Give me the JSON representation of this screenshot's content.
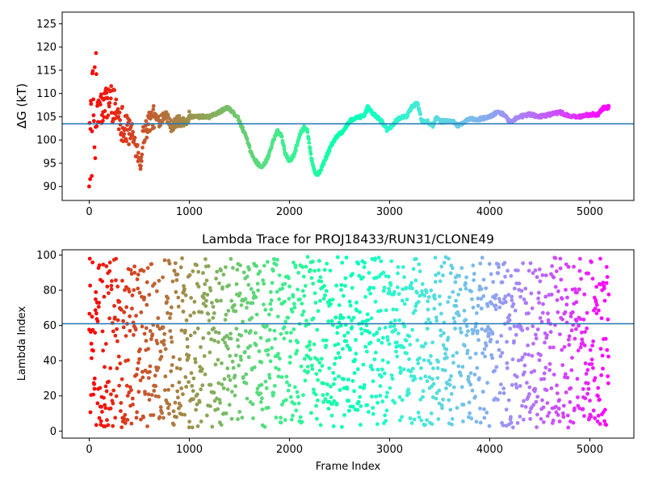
{
  "chart_data": [
    {
      "type": "scatter",
      "title": "",
      "xlabel": "",
      "ylabel": "ΔG (kT)",
      "xlim": [
        -270,
        5440
      ],
      "ylim": [
        87,
        127.5
      ],
      "xticks": [
        0,
        1000,
        2000,
        3000,
        4000,
        5000
      ],
      "yticks": [
        90,
        95,
        100,
        105,
        110,
        115,
        120,
        125
      ],
      "hline": 103.5,
      "colormap": "rainbow",
      "grid": false,
      "x_range": [
        0,
        5190
      ],
      "trend": [
        [
          0,
          100
        ],
        [
          30,
          103
        ],
        [
          60,
          108
        ],
        [
          100,
          106
        ],
        [
          150,
          107
        ],
        [
          200,
          109
        ],
        [
          260,
          107
        ],
        [
          320,
          104
        ],
        [
          380,
          103
        ],
        [
          430,
          101
        ],
        [
          480,
          98
        ],
        [
          510,
          95
        ],
        [
          540,
          101
        ],
        [
          600,
          104
        ],
        [
          650,
          105
        ],
        [
          700,
          104
        ],
        [
          760,
          106
        ],
        [
          820,
          103
        ],
        [
          880,
          104
        ],
        [
          950,
          104
        ],
        [
          1000,
          105
        ],
        [
          1100,
          105
        ],
        [
          1200,
          105
        ],
        [
          1300,
          106
        ],
        [
          1380,
          107
        ],
        [
          1430,
          106
        ],
        [
          1480,
          105
        ],
        [
          1560,
          101
        ],
        [
          1620,
          97
        ],
        [
          1680,
          95
        ],
        [
          1730,
          94
        ],
        [
          1780,
          96
        ],
        [
          1840,
          100
        ],
        [
          1880,
          102
        ],
        [
          1920,
          101
        ],
        [
          1960,
          97
        ],
        [
          2000,
          95.5
        ],
        [
          2050,
          97
        ],
        [
          2100,
          101
        ],
        [
          2150,
          103
        ],
        [
          2180,
          102
        ],
        [
          2220,
          96
        ],
        [
          2260,
          92.5
        ],
        [
          2300,
          93
        ],
        [
          2360,
          96
        ],
        [
          2420,
          99
        ],
        [
          2480,
          101
        ],
        [
          2540,
          102
        ],
        [
          2600,
          104
        ],
        [
          2680,
          105
        ],
        [
          2740,
          105
        ],
        [
          2780,
          107
        ],
        [
          2820,
          106
        ],
        [
          2870,
          105
        ],
        [
          2920,
          104
        ],
        [
          2980,
          102
        ],
        [
          3060,
          104
        ],
        [
          3120,
          105
        ],
        [
          3170,
          105
        ],
        [
          3220,
          107
        ],
        [
          3280,
          108
        ],
        [
          3320,
          104
        ],
        [
          3380,
          104
        ],
        [
          3430,
          103
        ],
        [
          3470,
          105
        ],
        [
          3510,
          104
        ],
        [
          3560,
          104
        ],
        [
          3600,
          104
        ],
        [
          3640,
          104
        ],
        [
          3680,
          103
        ],
        [
          3720,
          103.5
        ],
        [
          3800,
          104.5
        ],
        [
          3900,
          104.5
        ],
        [
          4000,
          105
        ],
        [
          4080,
          106
        ],
        [
          4140,
          105.5
        ],
        [
          4200,
          104
        ],
        [
          4300,
          105
        ],
        [
          4400,
          105.5
        ],
        [
          4500,
          105
        ],
        [
          4600,
          105.5
        ],
        [
          4700,
          106
        ],
        [
          4800,
          105
        ],
        [
          4900,
          105
        ],
        [
          5000,
          105.5
        ],
        [
          5080,
          105.5
        ],
        [
          5140,
          107
        ],
        [
          5190,
          107
        ]
      ]
    },
    {
      "type": "scatter",
      "title": "Lambda Trace for PROJ18433/RUN31/CLONE49",
      "xlabel": "Frame Index",
      "ylabel": "Lambda Index",
      "xlim": [
        -270,
        5440
      ],
      "ylim": [
        -4,
        103
      ],
      "xticks": [
        0,
        1000,
        2000,
        3000,
        4000,
        5000
      ],
      "yticks": [
        0,
        20,
        40,
        60,
        80,
        100
      ],
      "hline": 61,
      "colormap": "rainbow",
      "grid": false,
      "x_range": [
        0,
        5190
      ],
      "y_range": [
        2,
        99
      ]
    }
  ]
}
